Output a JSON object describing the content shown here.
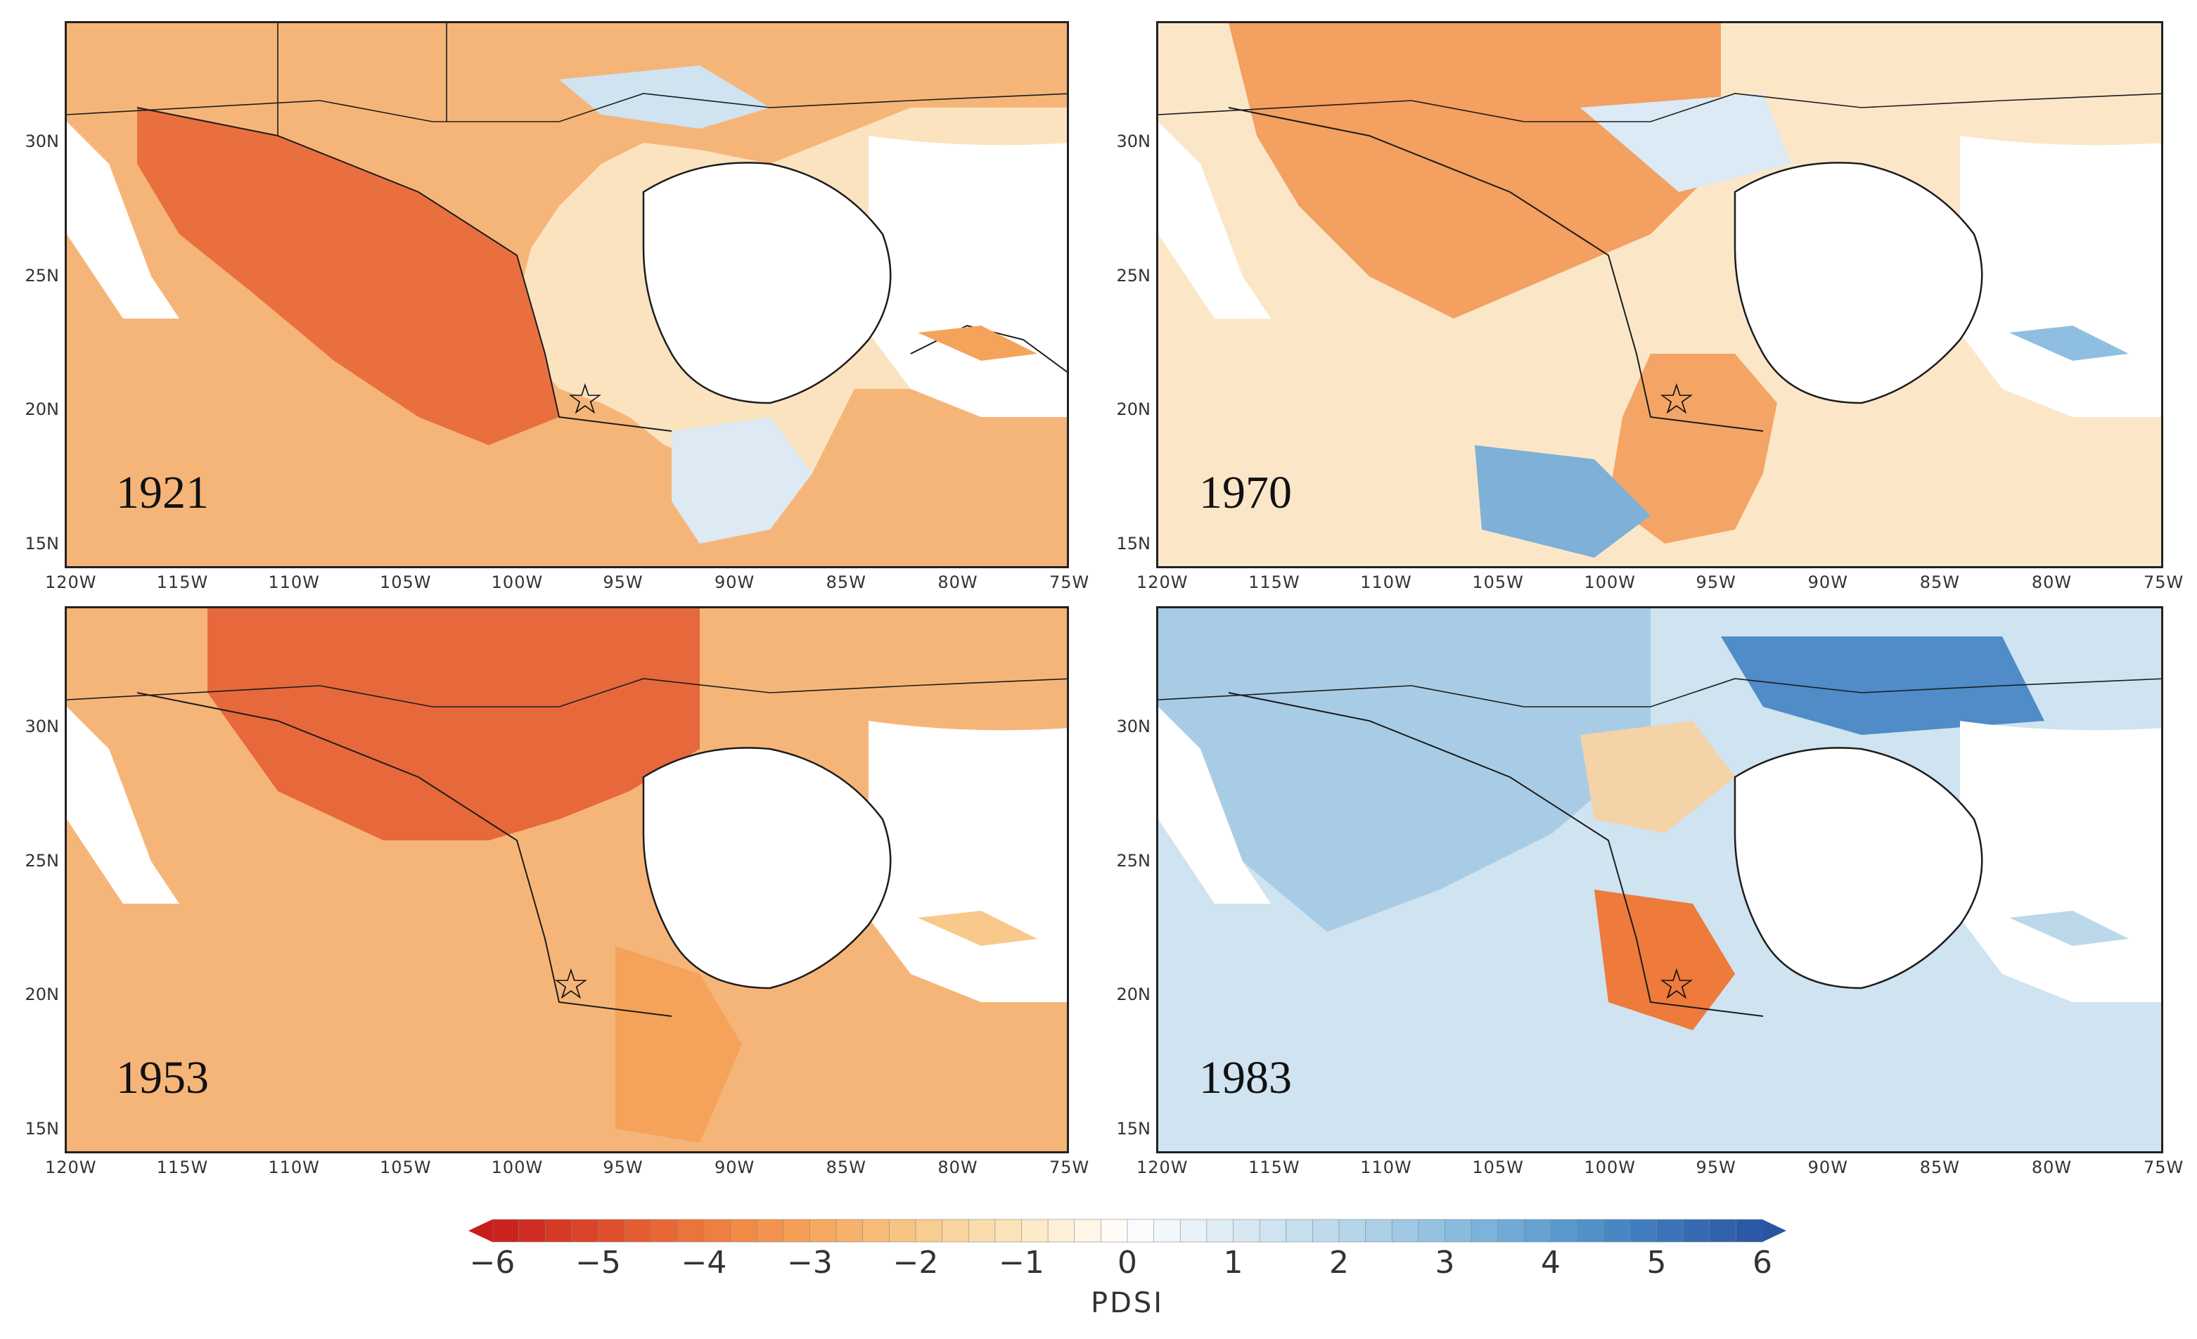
{
  "panels": [
    {
      "year": "1921",
      "id": "1921"
    },
    {
      "year": "1970",
      "id": "1970"
    },
    {
      "year": "1953",
      "id": "1953"
    },
    {
      "year": "1983",
      "id": "1983"
    }
  ],
  "axes": {
    "x_ticks": [
      "120W",
      "115W",
      "110W",
      "105W",
      "100W",
      "95W",
      "90W",
      "85W",
      "80W",
      "75W"
    ],
    "y_ticks": [
      "30N",
      "25N",
      "20N",
      "15N"
    ]
  },
  "colorbar": {
    "title": "PDSI",
    "ticks": [
      "-6",
      "-5",
      "-4",
      "-3",
      "-2",
      "-1",
      "0",
      "1",
      "2",
      "3",
      "4",
      "5",
      "6"
    ],
    "min": -6,
    "max": 6,
    "colors": [
      "#c81d1d",
      "#de4a2a",
      "#ee7a3c",
      "#f5a35a",
      "#f8c98a",
      "#fbe7c0",
      "#ffffff",
      "#dbeaf4",
      "#bad8ea",
      "#8fbfe0",
      "#5d9ed1",
      "#3d78bc",
      "#2a55a3"
    ]
  },
  "colors": {
    "land_mexico_1921": "#ef8e4e",
    "ocean": "#ffffff",
    "border": "#1c1c1c"
  }
}
